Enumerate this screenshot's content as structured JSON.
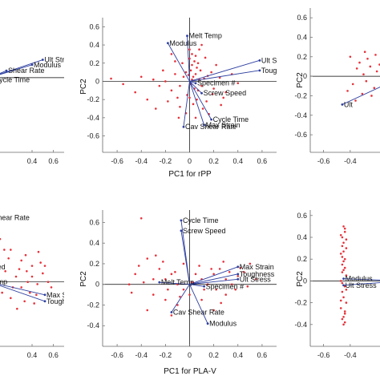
{
  "figure": {
    "colors": {
      "points": "#e8313a",
      "vectors": "#2d3fa0",
      "axes": "#333333",
      "zero_lines": "#000000",
      "frame": "#666666"
    }
  },
  "chart_data": [
    {
      "id": "top-left",
      "type": "scatter",
      "xlabel": "",
      "ylabel": "",
      "xlim": [
        -0.2,
        0.7
      ],
      "ylim": [
        -0.75,
        0.7
      ],
      "xticks": [
        0.4,
        0.6
      ],
      "xtick_labels": [
        "0.4",
        "0.6"
      ],
      "yticks": [],
      "ytick_labels": [],
      "vectors": [
        {
          "name": "Ult Stress",
          "x": 0.5,
          "y": 0.18
        },
        {
          "name": "Modulus",
          "x": 0.4,
          "y": 0.13
        },
        {
          "name": "Shear Rate",
          "x": 0.16,
          "y": 0.07
        },
        {
          "name": "Cycle Time",
          "x": 0.03,
          "y": -0.02
        }
      ],
      "points": []
    },
    {
      "id": "top-middle",
      "type": "scatter",
      "xlabel": "PC1 for rPP",
      "ylabel": "PC2",
      "xlim": [
        -0.72,
        0.72
      ],
      "ylim": [
        -0.78,
        0.7
      ],
      "xticks": [
        -0.6,
        -0.4,
        -0.2,
        0,
        0.2,
        0.4,
        0.6
      ],
      "xtick_labels": [
        "-0.6",
        "-0.4",
        "-0.2",
        "0",
        "0.2",
        "0.4",
        "0.6"
      ],
      "yticks": [
        -0.6,
        -0.4,
        -0.2,
        0,
        0.2,
        0.4,
        0.6
      ],
      "ytick_labels": [
        "-0.6",
        "-0.4",
        "-0.2",
        "0",
        "0.2",
        "0.4",
        "0.6"
      ],
      "vectors": [
        {
          "name": "Melt Temp",
          "x": -0.02,
          "y": 0.5
        },
        {
          "name": "Modulus",
          "x": -0.18,
          "y": 0.42
        },
        {
          "name": "Ult Stress",
          "x": 0.58,
          "y": 0.23
        },
        {
          "name": "Toughness",
          "x": 0.58,
          "y": 0.12
        },
        {
          "name": "Specimen #",
          "x": 0.05,
          "y": -0.02
        },
        {
          "name": "Screw Speed",
          "x": 0.1,
          "y": -0.13
        },
        {
          "name": "Cycle Time",
          "x": 0.18,
          "y": -0.42
        },
        {
          "name": "Max Strain",
          "x": 0.12,
          "y": -0.48
        },
        {
          "name": "Cav Shear Rate",
          "x": -0.05,
          "y": -0.5
        }
      ],
      "points": [
        [
          0.02,
          0.18
        ],
        [
          0.04,
          0.22
        ],
        [
          0.01,
          0.12
        ],
        [
          0.05,
          0.08
        ],
        [
          0.03,
          0.05
        ],
        [
          0.06,
          0.15
        ],
        [
          0.0,
          0.25
        ],
        [
          0.02,
          0.3
        ],
        [
          -0.03,
          0.1
        ],
        [
          -0.05,
          0.05
        ],
        [
          0.08,
          0.02
        ],
        [
          0.1,
          -0.05
        ],
        [
          0.07,
          -0.1
        ],
        [
          0.04,
          -0.08
        ],
        [
          0.01,
          -0.03
        ],
        [
          0.12,
          0.03
        ],
        [
          0.15,
          0.06
        ],
        [
          0.09,
          0.12
        ],
        [
          0.06,
          -0.2
        ],
        [
          0.03,
          -0.25
        ],
        [
          -0.02,
          -0.15
        ],
        [
          -0.08,
          -0.05
        ],
        [
          -0.12,
          0.08
        ],
        [
          -0.15,
          -0.1
        ],
        [
          -0.1,
          -0.18
        ],
        [
          0.2,
          -0.08
        ],
        [
          0.18,
          0.1
        ],
        [
          0.25,
          0.04
        ],
        [
          0.14,
          -0.22
        ],
        [
          0.11,
          -0.3
        ],
        [
          -0.06,
          0.2
        ],
        [
          0.0,
          0.35
        ],
        [
          0.05,
          0.28
        ],
        [
          -0.2,
          0.0
        ],
        [
          -0.25,
          -0.05
        ],
        [
          -0.18,
          -0.22
        ],
        [
          -0.3,
          0.02
        ],
        [
          -0.45,
          -0.12
        ],
        [
          -0.65,
          0.03
        ],
        [
          -0.55,
          -0.03
        ],
        [
          0.3,
          -0.12
        ],
        [
          0.35,
          0.08
        ],
        [
          0.28,
          -0.18
        ],
        [
          0.22,
          0.18
        ],
        [
          0.08,
          0.35
        ],
        [
          -0.03,
          -0.35
        ],
        [
          -0.08,
          -0.28
        ],
        [
          0.16,
          -0.36
        ],
        [
          0.02,
          0.02
        ],
        [
          -0.01,
          0.07
        ],
        [
          0.07,
          0.2
        ],
        [
          -0.12,
          0.22
        ],
        [
          -0.22,
          0.12
        ],
        [
          0.4,
          -0.02
        ],
        [
          0.13,
          0.26
        ],
        [
          -0.35,
          -0.2
        ],
        [
          -0.28,
          -0.3
        ],
        [
          0.19,
          -0.14
        ],
        [
          0.26,
          -0.26
        ],
        [
          -0.15,
          0.3
        ],
        [
          0.05,
          -0.4
        ],
        [
          0.0,
          -0.18
        ],
        [
          0.1,
          0.4
        ],
        [
          -0.09,
          -0.4
        ],
        [
          -0.4,
          0.05
        ]
      ]
    },
    {
      "id": "top-right",
      "type": "scatter",
      "xlabel": "",
      "ylabel": "PC2",
      "xlim": [
        -0.7,
        0.1
      ],
      "ylim": [
        -0.78,
        0.7
      ],
      "xticks": [
        -0.6,
        -0.4
      ],
      "xtick_labels": [
        "-0.6",
        "-0.4"
      ],
      "yticks": [
        -0.6,
        -0.4,
        -0.2,
        0,
        0.2,
        0.4,
        0.6
      ],
      "ytick_labels": [
        "-0.6",
        "-0.4",
        "-0.2",
        "0",
        "0.2",
        "0.4",
        "0.6"
      ],
      "vectors": [
        {
          "name": "Ult",
          "x": -0.46,
          "y": -0.29
        }
      ],
      "points": [
        [
          -0.2,
          0.05
        ],
        [
          -0.25,
          0.1
        ],
        [
          -0.3,
          0.02
        ],
        [
          -0.35,
          0.08
        ],
        [
          -0.28,
          -0.05
        ],
        [
          -0.4,
          0.2
        ],
        [
          -0.22,
          -0.12
        ],
        [
          -0.15,
          0.0
        ],
        [
          -0.33,
          0.14
        ],
        [
          -0.38,
          -0.08
        ],
        [
          -0.27,
          0.18
        ],
        [
          -0.31,
          -0.18
        ],
        [
          -0.18,
          0.12
        ],
        [
          -0.24,
          -0.2
        ],
        [
          -0.42,
          -0.15
        ],
        [
          -0.36,
          -0.25
        ],
        [
          -0.21,
          0.22
        ],
        [
          -0.29,
          0.25
        ]
      ]
    },
    {
      "id": "bottom-left",
      "type": "scatter",
      "xlabel": "",
      "ylabel": "",
      "xlim": [
        -0.2,
        0.7
      ],
      "ylim": [
        -0.6,
        0.7
      ],
      "xticks": [
        0.4,
        0.6
      ],
      "xtick_labels": [
        "0.4",
        "0.6"
      ],
      "yticks": [],
      "ytick_labels": [],
      "vectors": [
        {
          "name": "Shear Rate",
          "x": 0.02,
          "y": 0.6
        },
        {
          "name": "Max Strain",
          "x": 0.52,
          "y": -0.12
        },
        {
          "name": "Toughness",
          "x": 0.52,
          "y": -0.18
        },
        {
          "name": "ed",
          "x": 0.06,
          "y": 0.14
        },
        {
          "name": "mp",
          "x": 0.06,
          "y": 0.0
        }
      ],
      "points": [
        [
          0.05,
          0.55
        ],
        [
          0.1,
          0.4
        ],
        [
          0.2,
          0.3
        ],
        [
          0.3,
          0.2
        ],
        [
          0.35,
          0.1
        ],
        [
          0.4,
          0.05
        ],
        [
          0.45,
          -0.02
        ],
        [
          0.5,
          0.08
        ],
        [
          0.55,
          0.0
        ],
        [
          0.48,
          0.18
        ],
        [
          0.15,
          0.1
        ],
        [
          0.25,
          0.05
        ],
        [
          0.3,
          -0.05
        ],
        [
          0.38,
          -0.1
        ],
        [
          0.42,
          -0.2
        ],
        [
          0.12,
          -0.1
        ],
        [
          0.2,
          -0.15
        ],
        [
          0.28,
          0.12
        ],
        [
          0.33,
          -0.18
        ],
        [
          0.46,
          0.28
        ],
        [
          0.52,
          0.15
        ],
        [
          0.36,
          0.0
        ],
        [
          0.18,
          0.22
        ],
        [
          0.4,
          0.15
        ],
        [
          0.44,
          -0.12
        ],
        [
          0.58,
          -0.05
        ],
        [
          0.26,
          -0.25
        ],
        [
          0.34,
          0.25
        ],
        [
          0.22,
          -0.05
        ],
        [
          0.14,
          0.3
        ]
      ]
    },
    {
      "id": "bottom-middle",
      "type": "scatter",
      "xlabel": "PC1 for PLA-V",
      "ylabel": "PC2",
      "xlim": [
        -0.72,
        0.72
      ],
      "ylim": [
        -0.6,
        0.72
      ],
      "xticks": [
        -0.6,
        -0.4,
        -0.2,
        0,
        0.2,
        0.4,
        0.6
      ],
      "xtick_labels": [
        "-0.6",
        "-0.4",
        "-0.2",
        "0",
        "0.2",
        "0.4",
        "0.6"
      ],
      "yticks": [
        -0.4,
        -0.2,
        0,
        0.2,
        0.4,
        0.6
      ],
      "ytick_labels": [
        "-0.4",
        "-0.2",
        "0",
        "0.2",
        "0.4",
        "0.6"
      ],
      "vectors": [
        {
          "name": "Cycle Time",
          "x": -0.07,
          "y": 0.62
        },
        {
          "name": "Screw Speed",
          "x": -0.07,
          "y": 0.52
        },
        {
          "name": "Max Strain",
          "x": 0.4,
          "y": 0.17
        },
        {
          "name": "Toughness",
          "x": 0.4,
          "y": 0.1
        },
        {
          "name": "Ult Stress",
          "x": 0.4,
          "y": 0.05
        },
        {
          "name": "Melt Temp",
          "x": -0.25,
          "y": 0.02
        },
        {
          "name": "Specimen #",
          "x": 0.12,
          "y": -0.02
        },
        {
          "name": "Cav Shear Rate",
          "x": -0.15,
          "y": -0.27
        },
        {
          "name": "Modulus",
          "x": 0.15,
          "y": -0.38
        }
      ],
      "points": [
        [
          -0.4,
          0.64
        ],
        [
          -0.35,
          0.25
        ],
        [
          -0.45,
          0.1
        ],
        [
          -0.5,
          0.0
        ],
        [
          -0.3,
          0.05
        ],
        [
          -0.25,
          0.15
        ],
        [
          -0.2,
          0.05
        ],
        [
          -0.15,
          0.1
        ],
        [
          -0.1,
          0.0
        ],
        [
          -0.05,
          -0.05
        ],
        [
          0.05,
          0.1
        ],
        [
          0.1,
          0.05
        ],
        [
          0.15,
          0.0
        ],
        [
          0.2,
          0.1
        ],
        [
          0.25,
          0.15
        ],
        [
          0.3,
          0.05
        ],
        [
          0.35,
          0.0
        ],
        [
          0.4,
          0.08
        ],
        [
          0.45,
          0.12
        ],
        [
          0.5,
          0.2
        ],
        [
          0.55,
          0.05
        ],
        [
          -0.3,
          -0.1
        ],
        [
          -0.2,
          -0.15
        ],
        [
          -0.1,
          -0.2
        ],
        [
          0.0,
          -0.1
        ],
        [
          0.1,
          -0.15
        ],
        [
          0.2,
          -0.25
        ],
        [
          0.3,
          -0.1
        ],
        [
          -0.35,
          -0.25
        ],
        [
          -0.15,
          -0.3
        ],
        [
          -0.05,
          0.2
        ],
        [
          0.08,
          0.18
        ],
        [
          0.28,
          0.22
        ],
        [
          -0.42,
          0.18
        ],
        [
          -0.28,
          0.28
        ],
        [
          0.38,
          -0.05
        ],
        [
          0.48,
          -0.02
        ],
        [
          0.12,
          -0.05
        ],
        [
          -0.22,
          0.22
        ],
        [
          0.18,
          0.15
        ],
        [
          -0.48,
          -0.08
        ],
        [
          -0.12,
          0.12
        ],
        [
          0.02,
          0.02
        ],
        [
          0.22,
          -0.05
        ],
        [
          0.33,
          0.12
        ],
        [
          -0.38,
          0.02
        ],
        [
          -0.18,
          -0.05
        ],
        [
          0.42,
          0.16
        ],
        [
          -0.08,
          -0.12
        ],
        [
          0.26,
          -0.18
        ]
      ]
    },
    {
      "id": "bottom-right",
      "type": "scatter",
      "xlabel": "",
      "ylabel": "PC2",
      "xlim": [
        -0.7,
        0.1
      ],
      "ylim": [
        -0.6,
        0.65
      ],
      "xticks": [
        -0.6,
        -0.4
      ],
      "xtick_labels": [
        "-0.6",
        "-0.4"
      ],
      "yticks": [
        -0.4,
        -0.2,
        0,
        0.2,
        0.4,
        0.6
      ],
      "ytick_labels": [
        "-0.4",
        "-0.2",
        "0",
        "0.2",
        "0.4",
        "0.6"
      ],
      "vectors": [
        {
          "name": "Modulus",
          "x": -0.45,
          "y": 0.02
        },
        {
          "name": "Ult Stress",
          "x": -0.45,
          "y": -0.04
        }
      ],
      "points": [
        [
          -0.45,
          0.5
        ],
        [
          -0.44,
          0.45
        ],
        [
          -0.46,
          0.4
        ],
        [
          -0.45,
          0.35
        ],
        [
          -0.43,
          0.3
        ],
        [
          -0.47,
          0.25
        ],
        [
          -0.44,
          0.2
        ],
        [
          -0.46,
          0.15
        ],
        [
          -0.45,
          0.1
        ],
        [
          -0.43,
          0.05
        ],
        [
          -0.47,
          0.0
        ],
        [
          -0.44,
          -0.05
        ],
        [
          -0.46,
          -0.1
        ],
        [
          -0.45,
          -0.15
        ],
        [
          -0.43,
          -0.2
        ],
        [
          -0.47,
          -0.25
        ],
        [
          -0.44,
          -0.3
        ],
        [
          -0.46,
          -0.35
        ],
        [
          -0.45,
          -0.4
        ],
        [
          -0.44,
          0.48
        ],
        [
          -0.46,
          0.32
        ],
        [
          -0.45,
          0.18
        ],
        [
          -0.43,
          -0.08
        ],
        [
          -0.47,
          -0.18
        ],
        [
          -0.44,
          -0.28
        ],
        [
          -0.46,
          0.08
        ],
        [
          -0.45,
          -0.33
        ],
        [
          -0.43,
          0.38
        ],
        [
          -0.47,
          0.42
        ],
        [
          -0.44,
          0.12
        ],
        [
          -0.46,
          -0.02
        ],
        [
          -0.45,
          0.27
        ],
        [
          -0.44,
          -0.38
        ],
        [
          -0.46,
          0.22
        ]
      ]
    }
  ]
}
